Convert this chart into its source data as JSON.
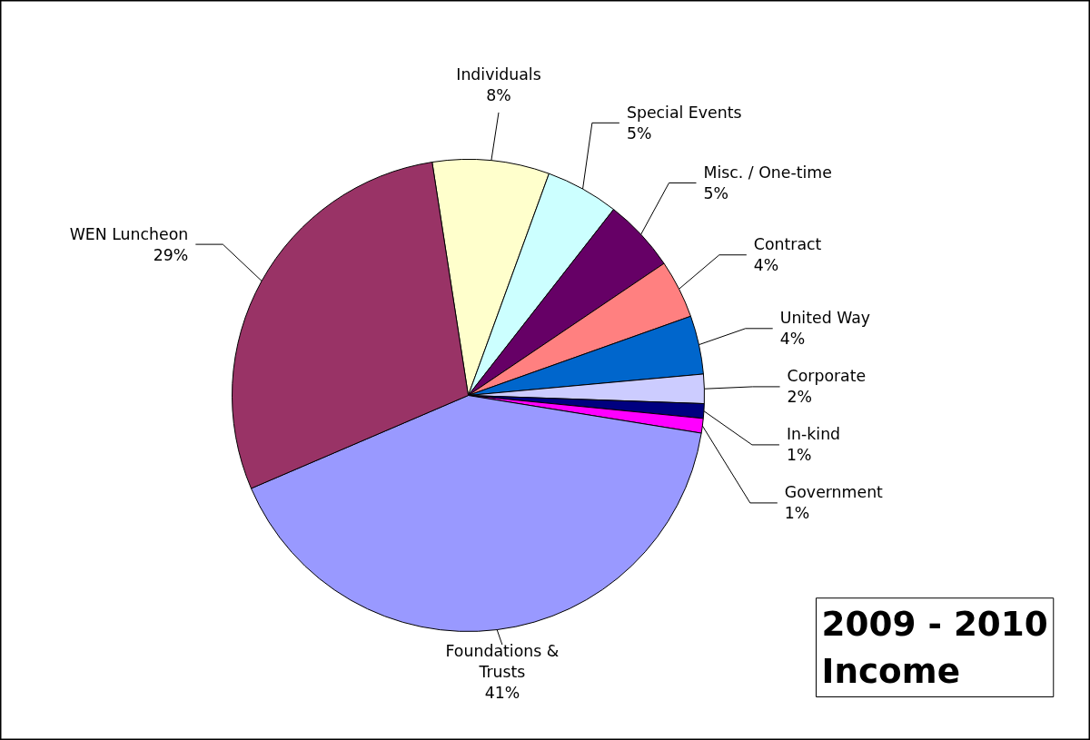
{
  "chart_data": {
    "type": "pie",
    "title": "2009 - 2010 Income",
    "categories": [
      "Individuals",
      "Special Events",
      "Misc. / One-time",
      "Contract",
      "United Way",
      "Corporate",
      "In-kind",
      "Government",
      "Foundations & Trusts",
      "WEN Luncheon"
    ],
    "values": [
      8,
      5,
      5,
      4,
      4,
      2,
      1,
      1,
      41,
      29
    ],
    "colors": [
      "#ffffcc",
      "#ccffff",
      "#660066",
      "#ff8080",
      "#0066cc",
      "#ccccff",
      "#000080",
      "#ff00ff",
      "#9999ff",
      "#993366"
    ],
    "value_labels": [
      "8%",
      "5%",
      "5%",
      "4%",
      "4%",
      "2%",
      "1%",
      "1%",
      "41%",
      "29%"
    ]
  }
}
